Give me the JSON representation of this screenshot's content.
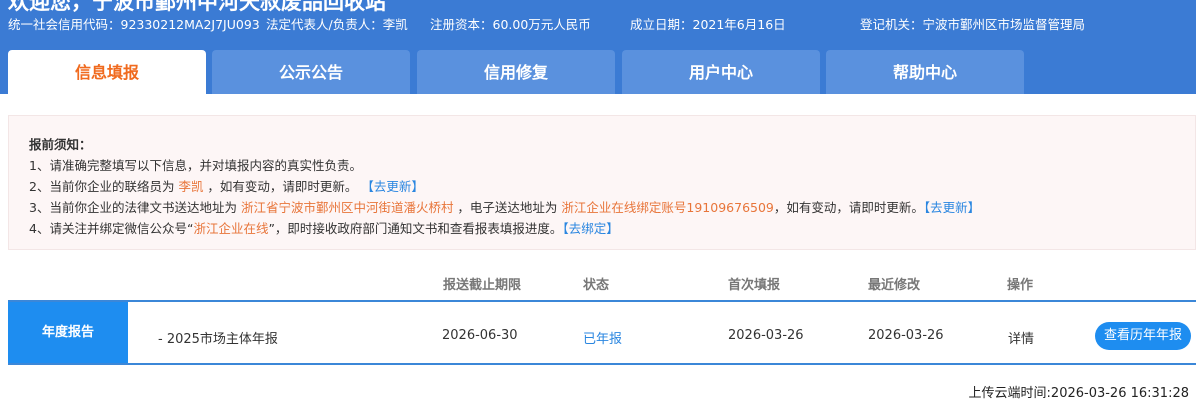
{
  "header": {
    "title": "欢迎您，宁波市鄞州中河天叔废品回收站",
    "credit_code": "统一社会信用代码：92330212MA2J7JU093",
    "legal_rep": "法定代表人/负责人：李凯",
    "capital": "注册资本：60.00万元人民币",
    "established": "成立日期：2021年6月16日",
    "authority": "登记机关：宁波市鄞州区市场监督管理局"
  },
  "tabs": [
    {
      "label": "信息填报",
      "active": true
    },
    {
      "label": "公示公告"
    },
    {
      "label": "信用修复"
    },
    {
      "label": "用户中心"
    },
    {
      "label": "帮助中心"
    }
  ],
  "notice": {
    "heading": "报前须知：",
    "l1": "1、请准确完整填写以下信息，并对填报内容的真实性负责。",
    "l2a": "2、当前你企业的联络员为 ",
    "l2b": "李凯",
    "l2c": " ，如有变动，请即时更新。 ",
    "l2link": "【去更新】",
    "l3a": "3、当前你企业的法律文书送达地址为 ",
    "l3b": "浙江省宁波市鄞州区中河街道潘火桥村",
    "l3c": " ，电子送达地址为 ",
    "l3d": "浙江企业在线绑定账号19109676509",
    "l3e": "，如有变动，请即时更新。",
    "l3link": "【去更新】",
    "l4a": "4、请关注并绑定微信公众号“",
    "l4b": "浙江企业在线",
    "l4c": "”，即时接收政府部门通知文书和查看报表填报进度。",
    "l4link": "【去绑定】"
  },
  "table": {
    "headers": [
      "报送截止期限",
      "状态",
      "首次填报",
      "最近修改",
      "操作"
    ],
    "row": {
      "label": "年度报告",
      "name": "- 2025市场主体年报",
      "deadline": "2026-06-30",
      "status": "已年报",
      "first": "2026-03-26",
      "last": "2026-03-26",
      "detail": "详情",
      "history_btn": "查看历年年报"
    }
  },
  "footer": {
    "upload_time": "上传云端时间:2026-03-26 16:31:28"
  },
  "colors": {
    "header": "#3b7bd4",
    "active_tab_text": "#f06a1e",
    "highlight": "#e8753a",
    "link": "#2a86e0",
    "button": "#1e8df0"
  }
}
